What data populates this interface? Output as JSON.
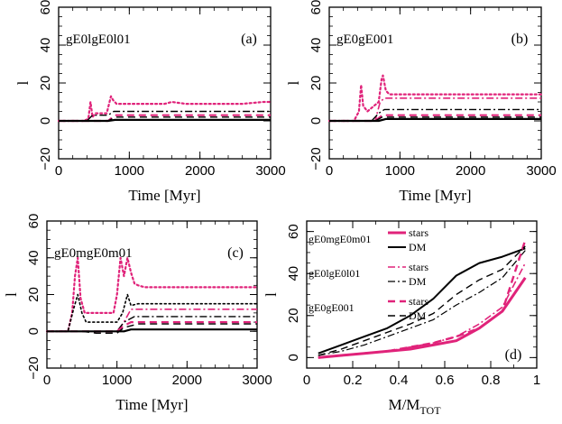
{
  "colors": {
    "stars": "#e0237a",
    "dm": "#000000"
  },
  "figure": {
    "panels": [
      {
        "letter": "(a)",
        "name": "gE0lgE0l01",
        "ylabel": "l",
        "xlabel": "Time [Myr]",
        "xticks": [
          "0",
          "1000",
          "2000",
          "3000"
        ],
        "yticks": [
          "−20",
          "0",
          "20",
          "40",
          "60"
        ]
      },
      {
        "letter": "(b)",
        "name": "gE0gE001",
        "ylabel": "l",
        "xlabel": "Time [Myr]",
        "xticks": [
          "0",
          "1000",
          "2000",
          "3000"
        ],
        "yticks": [
          "−20",
          "0",
          "20",
          "40",
          "60"
        ]
      },
      {
        "letter": "(c)",
        "name": "gE0mgE0m01",
        "ylabel": "l",
        "xlabel": "Time [Myr]",
        "xticks": [
          "0",
          "1000",
          "2000",
          "3000"
        ],
        "yticks": [
          "−20",
          "0",
          "20",
          "40",
          "60"
        ]
      },
      {
        "letter": "(d)",
        "ylabel": "l",
        "xlabel_main": "M/M",
        "xlabel_sub": "TOT",
        "xticks": [
          "0",
          "0.2",
          "0.4",
          "0.6",
          "0.8",
          "1"
        ],
        "yticks": [
          "0",
          "20",
          "40",
          "60"
        ],
        "legend": [
          {
            "run": "gE0mgE0m01",
            "stars": "stars",
            "dm": "DM"
          },
          {
            "run": "gE0lgE0l01",
            "stars": "stars",
            "dm": "DM"
          },
          {
            "run": "gE0gE001",
            "stars": "stars",
            "dm": "DM"
          }
        ]
      }
    ]
  },
  "chart_data": [
    {
      "type": "line",
      "panel": "(a)",
      "title": "gE0lgE0l01",
      "xlabel": "Time [Myr]",
      "ylabel": "l",
      "xlim": [
        0,
        3000
      ],
      "ylim": [
        -20,
        60
      ],
      "series": [
        {
          "color": "#e0237a",
          "dash": "dotted",
          "width": 2.2,
          "x": [
            0,
            350,
            420,
            450,
            480,
            520,
            680,
            740,
            770,
            820,
            900,
            1200,
            1500,
            1600,
            1800,
            2200,
            2600,
            2900,
            3000
          ],
          "y": [
            0,
            0,
            1,
            10,
            2,
            4,
            4,
            13,
            11,
            9,
            9,
            9,
            9,
            10,
            9,
            9,
            9,
            10,
            10
          ]
        },
        {
          "color": "#000000",
          "dash": "dashdot",
          "width": 1.4,
          "x": [
            0,
            400,
            480,
            700,
            780,
            900,
            1500,
            2000,
            2500,
            3000
          ],
          "y": [
            0,
            0,
            3,
            3,
            5,
            5,
            5,
            5,
            5,
            5
          ]
        },
        {
          "color": "#e0237a",
          "dash": "dashed",
          "width": 2.2,
          "x": [
            0,
            700,
            800,
            1000,
            1500,
            2000,
            2500,
            3000
          ],
          "y": [
            0,
            0,
            3,
            3,
            3,
            3,
            3,
            3
          ]
        },
        {
          "color": "#000000",
          "dash": "dashed",
          "width": 1.4,
          "x": [
            0,
            700,
            800,
            1500,
            3000
          ],
          "y": [
            0,
            0,
            2,
            2,
            2
          ]
        },
        {
          "color": "#000000",
          "dash": "solid",
          "width": 2.2,
          "x": [
            0,
            700,
            800,
            3000
          ],
          "y": [
            0,
            0,
            0.5,
            0.5
          ]
        }
      ]
    },
    {
      "type": "line",
      "panel": "(b)",
      "title": "gE0gE001",
      "xlabel": "Time [Myr]",
      "ylabel": "l",
      "xlim": [
        0,
        3000
      ],
      "ylim": [
        -20,
        60
      ],
      "series": [
        {
          "color": "#e0237a",
          "dash": "dotted",
          "width": 2.2,
          "x": [
            0,
            350,
            420,
            450,
            480,
            540,
            700,
            740,
            760,
            800,
            850,
            950,
            1200,
            1600,
            2000,
            2500,
            3000
          ],
          "y": [
            0,
            0,
            5,
            19,
            8,
            5,
            10,
            22,
            24,
            16,
            14,
            14,
            14,
            14,
            14,
            14,
            14
          ]
        },
        {
          "color": "#e0237a",
          "dash": "dashdot",
          "width": 1.6,
          "x": [
            0,
            650,
            720,
            780,
            850,
            1000,
            2000,
            3000
          ],
          "y": [
            0,
            0,
            10,
            12,
            12,
            12,
            12,
            12
          ]
        },
        {
          "color": "#000000",
          "dash": "dashdot",
          "width": 1.4,
          "x": [
            0,
            600,
            700,
            780,
            900,
            2000,
            3000
          ],
          "y": [
            0,
            0,
            4,
            6,
            6,
            6,
            6
          ]
        },
        {
          "color": "#e0237a",
          "dash": "dashed",
          "width": 2.2,
          "x": [
            0,
            650,
            750,
            900,
            3000
          ],
          "y": [
            0,
            0,
            3,
            3,
            3
          ]
        },
        {
          "color": "#000000",
          "dash": "dashed",
          "width": 1.4,
          "x": [
            0,
            650,
            750,
            900,
            3000
          ],
          "y": [
            0,
            0,
            2,
            2,
            2
          ]
        },
        {
          "color": "#000000",
          "dash": "solid",
          "width": 2.2,
          "x": [
            0,
            700,
            800,
            3000
          ],
          "y": [
            0,
            0,
            1,
            1
          ]
        }
      ]
    },
    {
      "type": "line",
      "panel": "(c)",
      "title": "gE0mgE0m01",
      "xlabel": "Time [Myr]",
      "ylabel": "l",
      "xlim": [
        0,
        3000
      ],
      "ylim": [
        -20,
        60
      ],
      "series": [
        {
          "color": "#e0237a",
          "dash": "dotted",
          "width": 2.2,
          "x": [
            0,
            300,
            360,
            400,
            440,
            480,
            540,
            950,
            1000,
            1050,
            1100,
            1150,
            1200,
            1250,
            1300,
            1400,
            2000,
            2500,
            3000
          ],
          "y": [
            0,
            0,
            10,
            30,
            40,
            18,
            10,
            10,
            20,
            40,
            30,
            40,
            32,
            26,
            25,
            24,
            24,
            24,
            24
          ]
        },
        {
          "color": "#000000",
          "dash": "dotted",
          "width": 1.6,
          "x": [
            0,
            300,
            380,
            440,
            500,
            560,
            1000,
            1080,
            1150,
            1200,
            1300,
            1500,
            2000,
            2500,
            3000
          ],
          "y": [
            0,
            0,
            12,
            20,
            10,
            5,
            5,
            10,
            20,
            14,
            15,
            15,
            15,
            15,
            15
          ]
        },
        {
          "color": "#e0237a",
          "dash": "dashdot",
          "width": 1.6,
          "x": [
            0,
            1000,
            1100,
            1200,
            1500,
            2000,
            3000
          ],
          "y": [
            0,
            0,
            5,
            12,
            12,
            12,
            12
          ]
        },
        {
          "color": "#000000",
          "dash": "dashdot",
          "width": 1.4,
          "x": [
            0,
            1000,
            1100,
            1250,
            1500,
            3000
          ],
          "y": [
            0,
            0,
            5,
            8,
            8,
            8
          ]
        },
        {
          "color": "#e0237a",
          "dash": "dashed",
          "width": 2.2,
          "x": [
            0,
            1000,
            1100,
            1200,
            3000
          ],
          "y": [
            0,
            0,
            3,
            5,
            5
          ]
        },
        {
          "color": "#000000",
          "dash": "dashed",
          "width": 1.4,
          "x": [
            0,
            500,
            700,
            1000,
            1100,
            1300,
            3000
          ],
          "y": [
            0,
            0,
            -1,
            -1,
            2,
            4,
            4
          ]
        },
        {
          "color": "#000000",
          "dash": "solid",
          "width": 2.2,
          "x": [
            0,
            1100,
            1200,
            3000
          ],
          "y": [
            0,
            0,
            1,
            1
          ]
        }
      ]
    },
    {
      "type": "line",
      "panel": "(d)",
      "xlabel": "M/MTOT",
      "ylabel": "l",
      "xlim": [
        0,
        1
      ],
      "ylim": [
        -5,
        65
      ],
      "series": [
        {
          "name": "stars",
          "run": "gE0mgE0m01",
          "color": "#e0237a",
          "dash": "solid",
          "width": 3,
          "x": [
            0.05,
            0.15,
            0.25,
            0.35,
            0.45,
            0.55,
            0.65,
            0.75,
            0.85,
            0.95
          ],
          "y": [
            0,
            1,
            2,
            3,
            4,
            6,
            8,
            14,
            22,
            38
          ]
        },
        {
          "name": "DM",
          "run": "gE0mgE0m01",
          "color": "#000000",
          "dash": "solid",
          "width": 2,
          "x": [
            0.05,
            0.15,
            0.25,
            0.35,
            0.45,
            0.55,
            0.65,
            0.75,
            0.85,
            0.95
          ],
          "y": [
            2,
            6,
            10,
            14,
            20,
            28,
            39,
            45,
            48,
            52
          ]
        },
        {
          "name": "stars",
          "run": "gE0lgE0l01",
          "color": "#e0237a",
          "dash": "dashdot",
          "width": 1.6,
          "x": [
            0.05,
            0.15,
            0.25,
            0.35,
            0.45,
            0.55,
            0.65,
            0.75,
            0.85,
            0.95
          ],
          "y": [
            0,
            1,
            2,
            3,
            5,
            7,
            10,
            16,
            24,
            45
          ]
        },
        {
          "name": "DM",
          "run": "gE0lgE0l01",
          "color": "#000000",
          "dash": "dashdot",
          "width": 1.2,
          "x": [
            0.05,
            0.15,
            0.25,
            0.35,
            0.45,
            0.55,
            0.65,
            0.75,
            0.85,
            0.95
          ],
          "y": [
            1,
            3,
            6,
            10,
            14,
            18,
            25,
            31,
            38,
            51
          ]
        },
        {
          "name": "stars",
          "run": "gE0gE001",
          "color": "#e0237a",
          "dash": "dashed",
          "width": 2.4,
          "x": [
            0.05,
            0.15,
            0.25,
            0.35,
            0.45,
            0.55,
            0.65,
            0.75,
            0.85,
            0.95
          ],
          "y": [
            0,
            1,
            2,
            3,
            5,
            7,
            10,
            14,
            22,
            56
          ]
        },
        {
          "name": "DM",
          "run": "gE0gE001",
          "color": "#000000",
          "dash": "dashed",
          "width": 1.4,
          "x": [
            0.05,
            0.15,
            0.25,
            0.35,
            0.45,
            0.55,
            0.65,
            0.75,
            0.85,
            0.95
          ],
          "y": [
            1,
            4,
            8,
            12,
            16,
            21,
            30,
            37,
            42,
            53
          ]
        }
      ]
    }
  ]
}
